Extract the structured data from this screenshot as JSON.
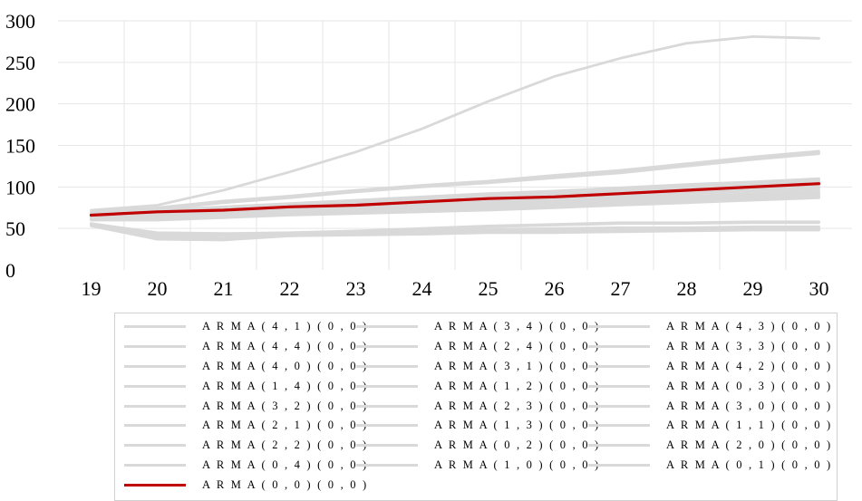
{
  "chart_data": {
    "type": "line",
    "title": "",
    "xlabel": "",
    "ylabel": "",
    "x": [
      19,
      20,
      21,
      22,
      23,
      24,
      25,
      26,
      27,
      28,
      29,
      30
    ],
    "ylim": [
      0,
      300
    ],
    "yticks": [
      0,
      50,
      100,
      150,
      200,
      250,
      300
    ],
    "grid": "vertical-and-horizontal",
    "legend_position": "bottom",
    "series_color": "#d9d9d9",
    "highlight_color": "#c00000",
    "series": [
      {
        "name": "A R M A ( 4 , 1 ) ( 0 , 0 )",
        "values": [
          72,
          78,
          96,
          118,
          142,
          170,
          203,
          233,
          255,
          273,
          281,
          279
        ]
      },
      {
        "name": "A R M A ( 3 , 4 ) ( 0 , 0 )",
        "values": [
          70,
          75,
          83,
          89,
          96,
          102,
          107,
          114,
          120,
          128,
          136,
          143
        ]
      },
      {
        "name": "A R M A ( 4 , 3 ) ( 0 , 0 )",
        "values": [
          69,
          74,
          82,
          88,
          95,
          101,
          106,
          112,
          118,
          126,
          134,
          141
        ]
      },
      {
        "name": "A R M A ( 4 , 4 ) ( 0 , 0 )",
        "values": [
          68,
          73,
          81,
          87,
          94,
          100,
          105,
          111,
          117,
          125,
          133,
          140
        ]
      },
      {
        "name": "A R M A ( 2 , 4 ) ( 0 , 0 )",
        "values": [
          67,
          72,
          76,
          80,
          84,
          88,
          92,
          95,
          99,
          103,
          106,
          110
        ]
      },
      {
        "name": "A R M A ( 3 , 3 ) ( 0 , 0 )",
        "values": [
          67,
          71,
          75,
          79,
          83,
          87,
          91,
          94,
          98,
          102,
          105,
          108
        ]
      },
      {
        "name": "A R M A ( 4 , 0 ) ( 0 , 0 )",
        "values": [
          66,
          70,
          74,
          78,
          82,
          86,
          89,
          92,
          96,
          100,
          103,
          106
        ]
      },
      {
        "name": "A R M A ( 3 , 1 ) ( 0 , 0 )",
        "values": [
          66,
          69,
          72,
          76,
          80,
          84,
          87,
          90,
          94,
          98,
          101,
          104
        ]
      },
      {
        "name": "A R M A ( 4 , 2 ) ( 0 , 0 )",
        "values": [
          65,
          68,
          71,
          74,
          78,
          82,
          85,
          88,
          92,
          96,
          99,
          102
        ]
      },
      {
        "name": "A R M A ( 1 , 4 ) ( 0 , 0 )",
        "values": [
          65,
          67,
          70,
          73,
          76,
          80,
          83,
          86,
          90,
          94,
          97,
          100
        ]
      },
      {
        "name": "A R M A ( 1 , 2 ) ( 0 , 0 )",
        "values": [
          64,
          66,
          69,
          72,
          75,
          78,
          81,
          84,
          88,
          92,
          95,
          98
        ]
      },
      {
        "name": "A R M A ( 0 , 3 ) ( 0 , 0 )",
        "values": [
          64,
          65,
          68,
          71,
          74,
          77,
          80,
          83,
          86,
          89,
          92,
          95
        ]
      },
      {
        "name": "A R M A ( 3 , 2 ) ( 0 , 0 )",
        "values": [
          63,
          64,
          67,
          70,
          73,
          75,
          78,
          81,
          84,
          87,
          90,
          93
        ]
      },
      {
        "name": "A R M A ( 2 , 3 ) ( 0 , 0 )",
        "values": [
          62,
          63,
          66,
          69,
          72,
          74,
          76,
          79,
          82,
          85,
          88,
          91
        ]
      },
      {
        "name": "A R M A ( 3 , 0 ) ( 0 , 0 )",
        "values": [
          62,
          62,
          65,
          68,
          70,
          72,
          74,
          77,
          80,
          83,
          86,
          89
        ]
      },
      {
        "name": "A R M A ( 2 , 1 ) ( 0 , 0 )",
        "values": [
          61,
          61,
          64,
          67,
          69,
          71,
          73,
          76,
          79,
          82,
          85,
          88
        ]
      },
      {
        "name": "A R M A ( 1 , 3 ) ( 0 , 0 )",
        "values": [
          60,
          60,
          63,
          66,
          68,
          70,
          72,
          75,
          78,
          81,
          84,
          87
        ]
      },
      {
        "name": "A R M A ( 1 , 1 ) ( 0 , 0 )",
        "values": [
          56,
          45,
          44,
          45,
          47,
          50,
          53,
          55,
          57,
          57,
          58,
          58
        ]
      },
      {
        "name": "A R M A ( 2 , 2 ) ( 0 , 0 )",
        "values": [
          56,
          44,
          43,
          44,
          46,
          49,
          52,
          54,
          56,
          56,
          57,
          57
        ]
      },
      {
        "name": "A R M A ( 0 , 2 ) ( 0 , 0 )",
        "values": [
          55,
          42,
          41,
          43,
          45,
          47,
          49,
          50,
          51,
          51,
          52,
          52
        ]
      },
      {
        "name": "A R M A ( 2 , 0 ) ( 0 , 0 )",
        "values": [
          55,
          40,
          38,
          42,
          44,
          46,
          47,
          48,
          49,
          50,
          51,
          51
        ]
      },
      {
        "name": "A R M A ( 0 , 4 ) ( 0 , 0 )",
        "values": [
          54,
          39,
          37,
          42,
          43,
          45,
          46,
          47,
          48,
          49,
          50,
          50
        ]
      },
      {
        "name": "A R M A ( 1 , 0 ) ( 0 , 0 )",
        "values": [
          54,
          38,
          37,
          41,
          43,
          44,
          46,
          46,
          47,
          48,
          49,
          49
        ]
      },
      {
        "name": "A R M A ( 0 , 1 ) ( 0 , 0 )",
        "values": [
          53,
          37,
          36,
          41,
          42,
          43,
          45,
          45,
          46,
          47,
          48,
          48
        ]
      },
      {
        "name": "A R M A ( 0 , 0 ) ( 0 , 0 )",
        "highlight": true,
        "values": [
          66,
          70,
          72,
          76,
          78,
          82,
          86,
          88,
          92,
          96,
          100,
          104
        ]
      }
    ]
  }
}
